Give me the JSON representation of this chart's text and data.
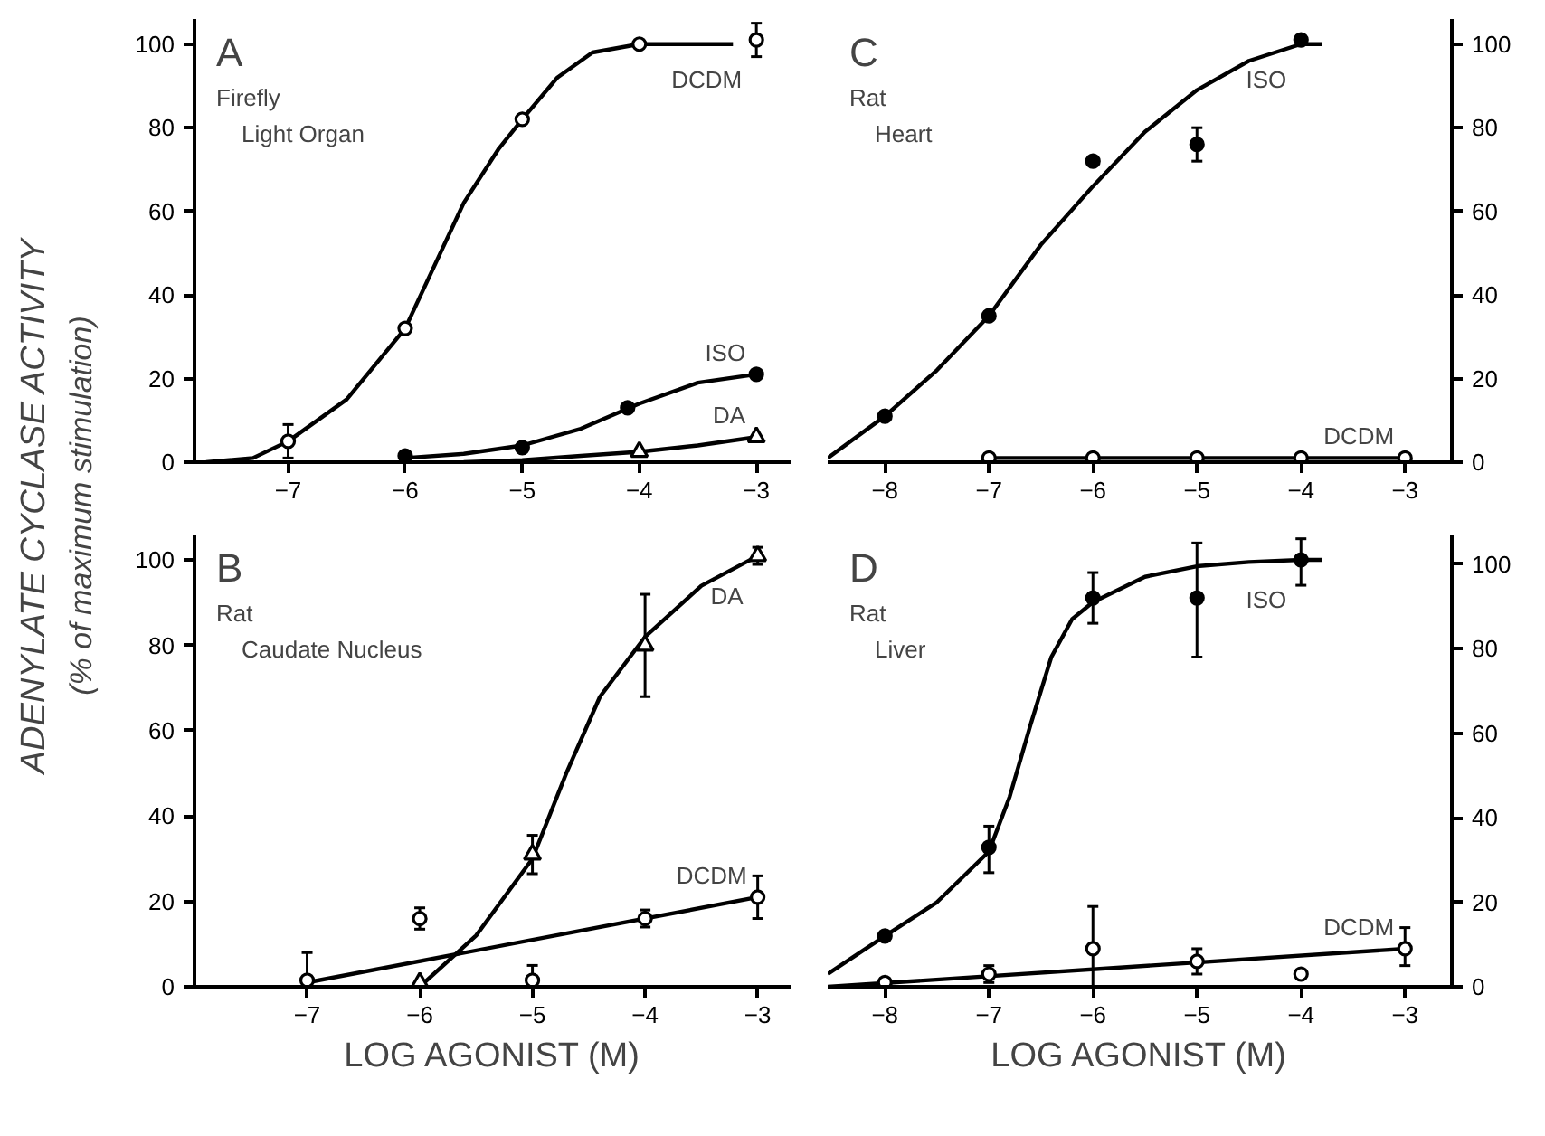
{
  "chart_data": [
    {
      "type": "scatter",
      "title": "A",
      "subtitle": "Firefly\nLight Organ",
      "ylabel": "ADENYLATE CYCLASE ACTIVITY\n(% of maximum stimulation)",
      "xlim": [
        -7.8,
        -2.7
      ],
      "xticks": [
        -7,
        -6,
        -5,
        -4,
        -3
      ],
      "ylim": [
        0,
        106
      ],
      "yticks": [
        0,
        20,
        40,
        60,
        80,
        100
      ],
      "grid": false,
      "series": [
        {
          "type": "line",
          "color": "#000000",
          "x": [
            -7.7,
            -7.3,
            -7,
            -6.5,
            -6,
            -5.7,
            -5.5,
            -5.2,
            -5,
            -4.7,
            -4.4,
            -4,
            -3.2
          ],
          "values": [
            0,
            1,
            5,
            15,
            32,
            50,
            62,
            75,
            82,
            92,
            98,
            100,
            100
          ]
        },
        {
          "type": "line",
          "color": "#000000",
          "x": [
            -6,
            -5.5,
            -5,
            -4.5,
            -4,
            -3.5,
            -3
          ],
          "values": [
            1,
            2,
            4,
            8,
            14,
            19,
            21
          ]
        },
        {
          "type": "line",
          "color": "#000000",
          "x": [
            -5.5,
            -5,
            -4.5,
            -4,
            -3.5,
            -3
          ],
          "values": [
            0,
            0.5,
            1.5,
            2.5,
            4,
            6
          ]
        },
        {
          "type": "scatter",
          "name": "DCDM",
          "marker": "circle",
          "color": "#ffffff",
          "x": [
            -7,
            -6,
            -5,
            -4,
            -3
          ],
          "values": [
            5,
            32,
            82,
            100,
            101
          ],
          "errors": [
            [
              1,
              9
            ],
            null,
            null,
            null,
            [
              97,
              105
            ]
          ]
        },
        {
          "type": "scatter",
          "name": "ISO",
          "marker": "circle",
          "color": "#000000",
          "x": [
            -6,
            -5,
            -4.1,
            -3
          ],
          "values": [
            1.5,
            3.5,
            13,
            21
          ]
        },
        {
          "type": "scatter",
          "name": "DA",
          "marker": "triangle",
          "color": "#ffffff",
          "x": [
            -4,
            -3
          ],
          "values": [
            2.5,
            6
          ]
        }
      ]
    },
    {
      "type": "scatter",
      "title": "C",
      "subtitle": "Rat\nHeart",
      "xlim": [
        -8.55,
        -2.55
      ],
      "xticks": [
        -8,
        -7,
        -6,
        -5,
        -4,
        -3
      ],
      "y2lim": [
        0,
        106
      ],
      "y2ticks": [
        0,
        20,
        40,
        60,
        80,
        100
      ],
      "grid": false,
      "series": [
        {
          "type": "line",
          "axis": "y2",
          "color": "#000000",
          "x": [
            -8.55,
            -8,
            -7.5,
            -7,
            -6.5,
            -6,
            -5.5,
            -5,
            -4.5,
            -4,
            -3.8
          ],
          "values": [
            1,
            11,
            22,
            35,
            52,
            66,
            79,
            89,
            96,
            100,
            100
          ]
        },
        {
          "type": "line",
          "axis": "y2",
          "color": "#000000",
          "x": [
            -7,
            -3
          ],
          "values": [
            1,
            1
          ]
        },
        {
          "type": "scatter",
          "name": "ISO",
          "axis": "y2",
          "marker": "circle",
          "color": "#000000",
          "x": [
            -8,
            -7,
            -6,
            -5,
            -4
          ],
          "values": [
            11,
            35,
            72,
            76,
            101
          ],
          "errors": [
            null,
            null,
            null,
            4,
            null
          ]
        },
        {
          "type": "scatter",
          "name": "DCDM",
          "axis": "y2",
          "marker": "circle",
          "color": "#ffffff",
          "x": [
            -7,
            -6,
            -5,
            -4,
            -3
          ],
          "values": [
            1,
            1,
            1,
            1,
            1
          ]
        }
      ]
    },
    {
      "type": "scatter",
      "title": "B",
      "subtitle": "Rat\nCaudate Nucleus",
      "xlabel": "LOG AGONIST (M)",
      "xlim": [
        -8,
        -2.7
      ],
      "xticks": [
        -7,
        -6,
        -5,
        -4,
        -3
      ],
      "ylim": [
        0,
        106
      ],
      "yticks": [
        0,
        20,
        40,
        60,
        80,
        100
      ],
      "grid": false,
      "series": [
        {
          "type": "line",
          "color": "#000000",
          "x": [
            -6,
            -5.5,
            -5,
            -4.7,
            -4.4,
            -4,
            -3.5,
            -3
          ],
          "values": [
            0,
            12,
            30,
            50,
            68,
            82,
            94,
            101
          ]
        },
        {
          "type": "line",
          "color": "#000000",
          "x": [
            -7,
            -3
          ],
          "values": [
            1,
            21
          ]
        },
        {
          "type": "scatter",
          "name": "DA",
          "marker": "triangle",
          "color": "#ffffff",
          "x": [
            -6,
            -5,
            -4,
            -3
          ],
          "values": [
            1,
            31,
            80,
            101
          ],
          "errors": [
            null,
            4.5,
            [
              68,
              92
            ],
            2
          ]
        },
        {
          "type": "scatter",
          "name": "DCDM",
          "marker": "circle",
          "color": "#ffffff",
          "x": [
            -7,
            -6,
            -5,
            -4,
            -3
          ],
          "values": [
            1.5,
            16,
            1.5,
            16,
            21
          ],
          "errors": [
            [
              0,
              8
            ],
            2.5,
            [
              1.5,
              5
            ],
            2,
            [
              16,
              26
            ]
          ]
        }
      ]
    },
    {
      "type": "scatter",
      "title": "D",
      "subtitle": "Rat\nLiver",
      "xlabel": "LOG AGONIST (M)",
      "xlim": [
        -8.55,
        -2.55
      ],
      "xticks": [
        -8,
        -7,
        -6,
        -5,
        -4,
        -3
      ],
      "y2lim": [
        0,
        107
      ],
      "y2ticks": [
        0,
        20,
        40,
        60,
        80,
        100
      ],
      "grid": false,
      "series": [
        {
          "type": "line",
          "axis": "y2",
          "color": "#000000",
          "x": [
            -8.55,
            -8,
            -7.5,
            -7,
            -6.8,
            -6.6,
            -6.4,
            -6.2,
            -6,
            -5.5,
            -5,
            -4.5,
            -4,
            -3.8
          ],
          "values": [
            3,
            12,
            20,
            32,
            45,
            62,
            78,
            87,
            91,
            97,
            99.5,
            100.5,
            101,
            101
          ]
        },
        {
          "type": "line",
          "axis": "y2",
          "color": "#000000",
          "x": [
            -8.55,
            -3
          ],
          "values": [
            0,
            9
          ]
        },
        {
          "type": "scatter",
          "name": "ISO",
          "axis": "y2",
          "marker": "circle",
          "color": "#000000",
          "x": [
            -8,
            -7,
            -6,
            -5,
            -4
          ],
          "values": [
            12,
            33,
            92,
            92,
            101
          ],
          "errors": [
            null,
            [
              27,
              38
            ],
            [
              86,
              98
            ],
            [
              78,
              105
            ],
            [
              95,
              106
            ]
          ]
        },
        {
          "type": "scatter",
          "name": "DCDM",
          "axis": "y2",
          "marker": "circle",
          "color": "#ffffff",
          "x": [
            -8,
            -7,
            -6,
            -5,
            -4,
            -3
          ],
          "values": [
            1,
            3,
            9,
            6,
            3,
            9
          ],
          "errors": [
            null,
            2,
            [
              0,
              19
            ],
            [
              3,
              9
            ],
            null,
            [
              5,
              14
            ]
          ]
        }
      ]
    }
  ]
}
